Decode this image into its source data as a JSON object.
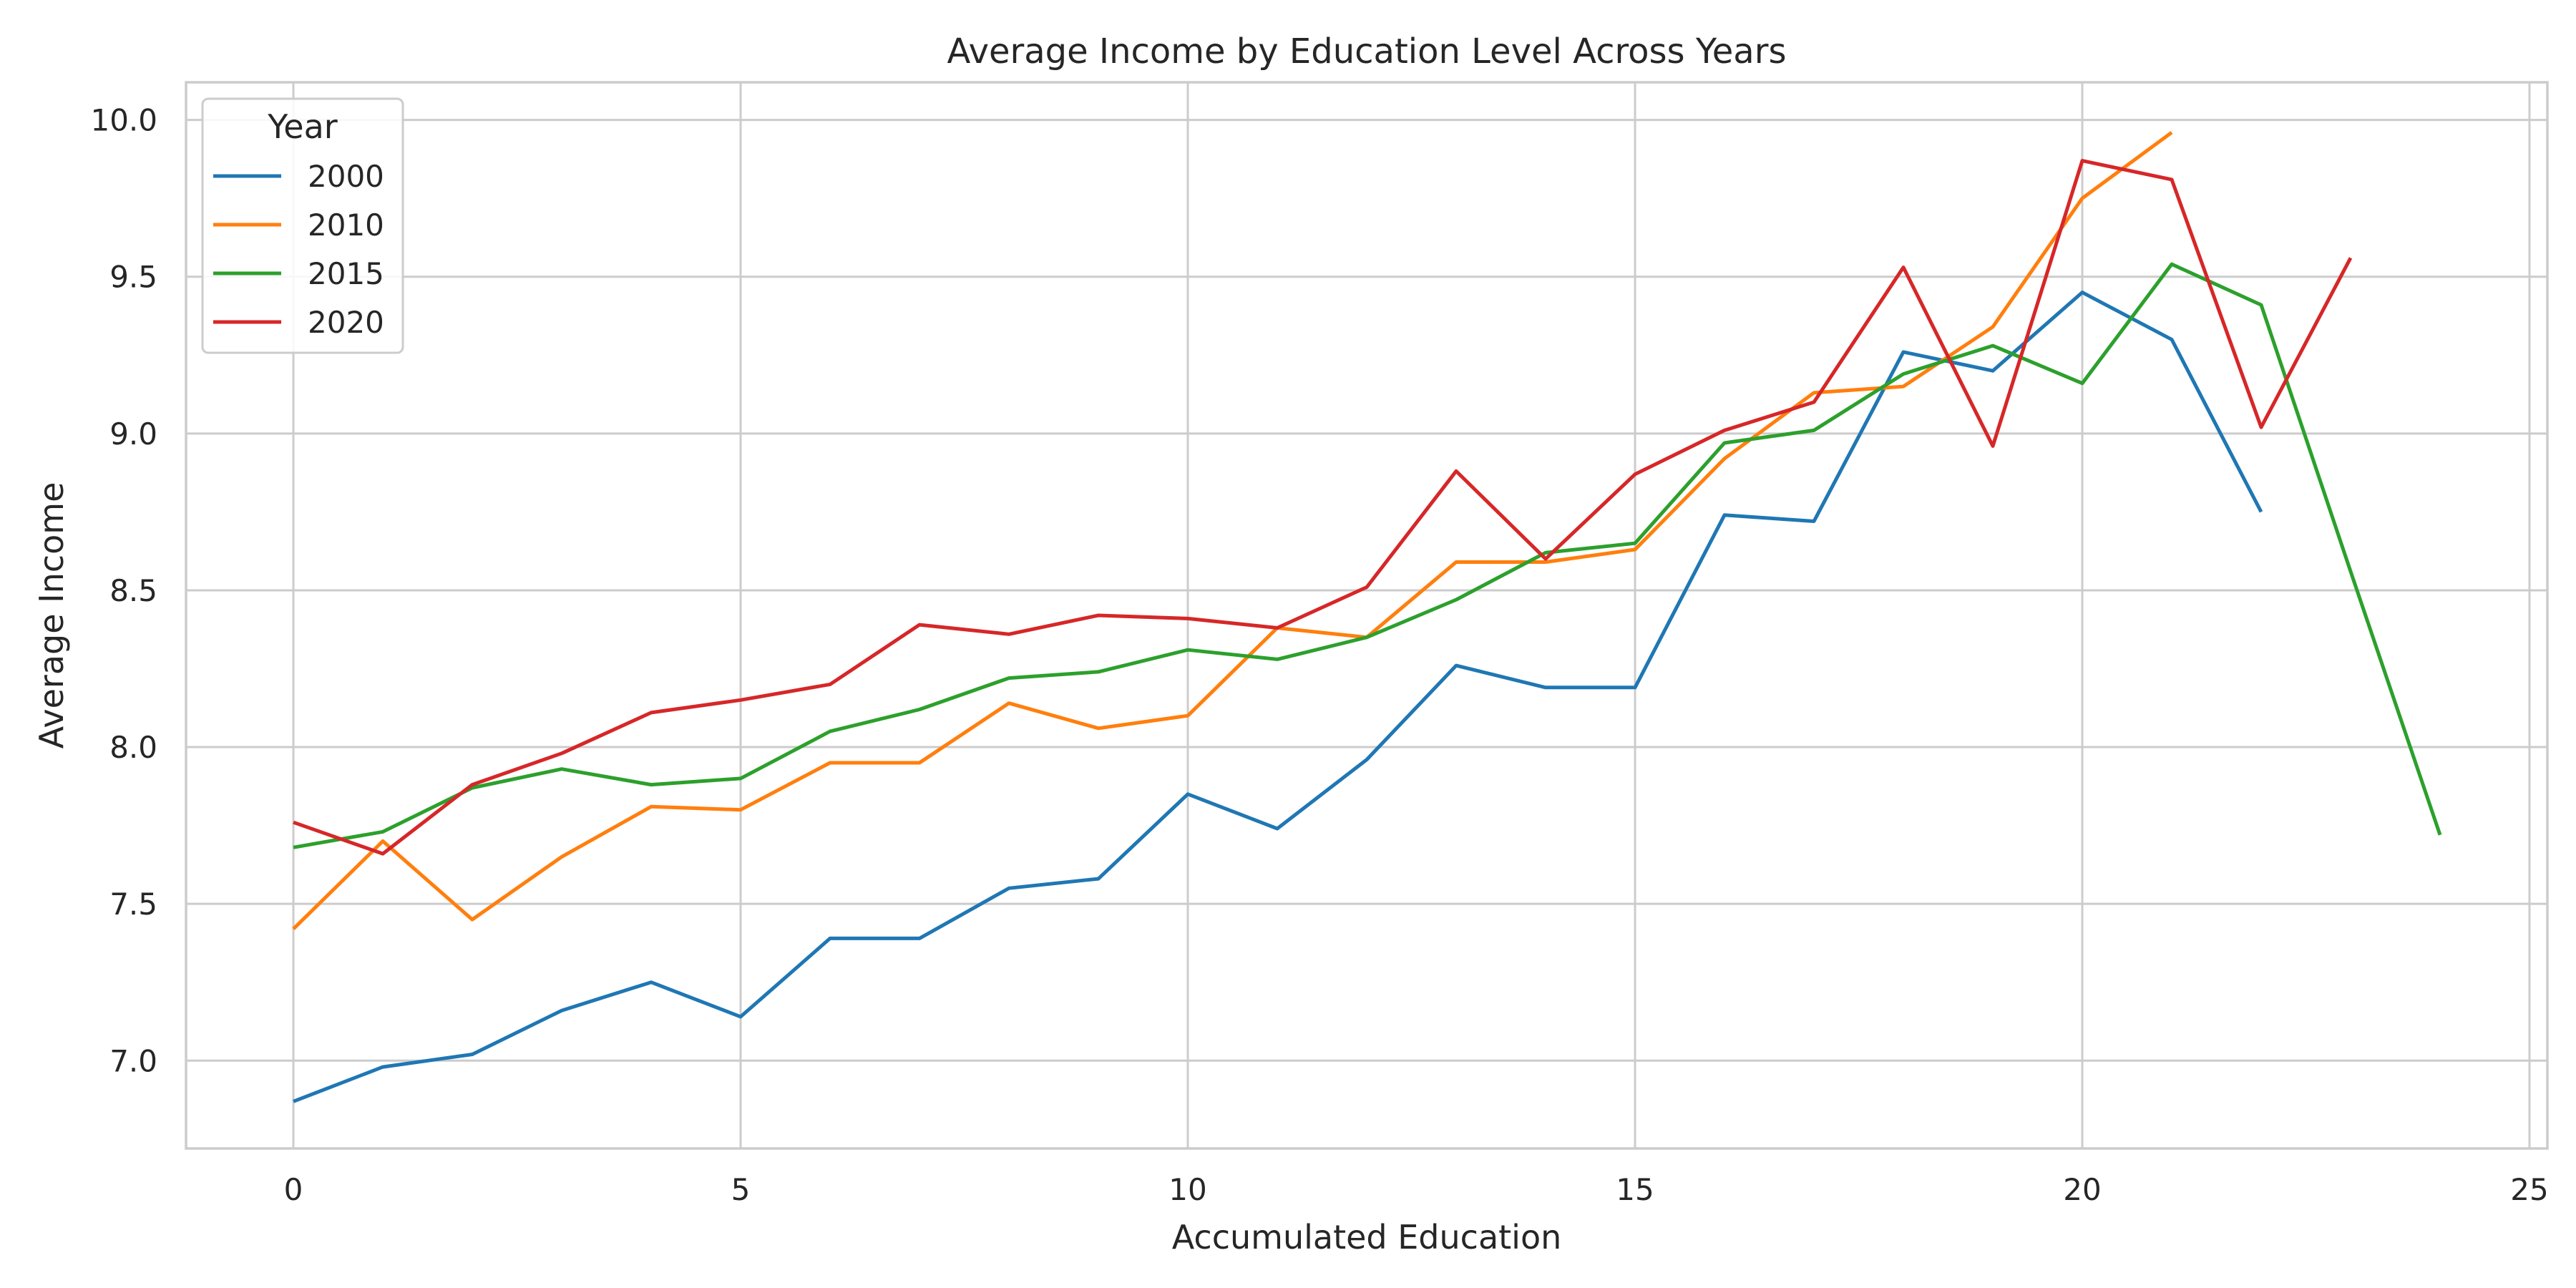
{
  "chart_data": {
    "type": "line",
    "title": "Average Income by Education Level Across Years",
    "xlabel": "Accumulated Education",
    "ylabel": "Average Income",
    "xlim": [
      -1.2,
      25.2
    ],
    "ylim": [
      6.72,
      10.12
    ],
    "xticks": [
      0,
      5,
      10,
      15,
      20,
      25
    ],
    "xtick_labels": [
      "0",
      "5",
      "10",
      "15",
      "20",
      "25"
    ],
    "yticks": [
      7.0,
      7.5,
      8.0,
      8.5,
      9.0,
      9.5,
      10.0
    ],
    "ytick_labels": [
      "7.0",
      "7.5",
      "8.0",
      "8.5",
      "9.0",
      "9.5",
      "10.0"
    ],
    "grid": true,
    "legend": {
      "title": "Year",
      "placement": "upper-left"
    },
    "series": [
      {
        "name": "2000",
        "color": "#1f77b4",
        "x": [
          0,
          1,
          2,
          3,
          4,
          5,
          6,
          7,
          8,
          9,
          10,
          11,
          12,
          13,
          14,
          15,
          16,
          17,
          18,
          19,
          20,
          21,
          22
        ],
        "y": [
          6.87,
          6.98,
          7.02,
          7.16,
          7.25,
          7.14,
          7.39,
          7.39,
          7.55,
          7.58,
          7.85,
          7.74,
          7.96,
          8.26,
          8.19,
          8.19,
          8.74,
          8.72,
          9.26,
          9.2,
          9.45,
          9.3,
          8.75
        ]
      },
      {
        "name": "2010",
        "color": "#ff7f0e",
        "x": [
          0,
          1,
          2,
          3,
          4,
          5,
          6,
          7,
          8,
          9,
          10,
          11,
          12,
          13,
          14,
          15,
          16,
          17,
          18,
          19,
          20,
          21
        ],
        "y": [
          7.42,
          7.7,
          7.45,
          7.65,
          7.81,
          7.8,
          7.95,
          7.95,
          8.14,
          8.06,
          8.1,
          8.38,
          8.35,
          8.59,
          8.59,
          8.63,
          8.92,
          9.13,
          9.15,
          9.34,
          9.75,
          9.96
        ]
      },
      {
        "name": "2015",
        "color": "#2ca02c",
        "x": [
          0,
          1,
          2,
          3,
          4,
          5,
          6,
          7,
          8,
          9,
          10,
          11,
          12,
          13,
          14,
          15,
          16,
          17,
          18,
          19,
          20,
          21,
          22,
          23,
          24
        ],
        "y": [
          7.68,
          7.73,
          7.87,
          7.93,
          7.88,
          7.9,
          8.05,
          8.12,
          8.22,
          8.24,
          8.31,
          8.28,
          8.35,
          8.47,
          8.62,
          8.65,
          8.97,
          9.01,
          9.19,
          9.28,
          9.16,
          9.54,
          9.41,
          8.56,
          7.72
        ]
      },
      {
        "name": "2020",
        "color": "#d62728",
        "x": [
          0,
          1,
          2,
          3,
          4,
          5,
          6,
          7,
          8,
          9,
          10,
          11,
          12,
          13,
          14,
          15,
          16,
          17,
          18,
          19,
          20,
          21,
          22,
          23
        ],
        "y": [
          7.76,
          7.66,
          7.88,
          7.98,
          8.11,
          8.15,
          8.2,
          8.39,
          8.36,
          8.42,
          8.41,
          8.38,
          8.51,
          8.88,
          8.6,
          8.87,
          9.01,
          9.1,
          9.53,
          8.96,
          9.87,
          9.81,
          9.02,
          9.56
        ]
      }
    ]
  }
}
